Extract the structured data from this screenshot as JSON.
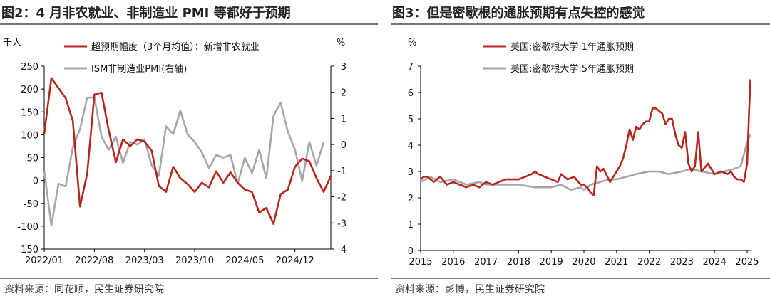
{
  "colors": {
    "red": "#b5271c",
    "gray": "#a6a6a6",
    "axis": "#000000"
  },
  "left": {
    "title": "图2：4 月非农就业、非制造业 PMI 等都好于预期",
    "source": "资料来源：同花顺，民生证券研究院",
    "unit_left": "千人",
    "unit_right": "%",
    "chart_data": {
      "type": "line",
      "xlim": [
        0,
        40
      ],
      "ylim_left": [
        -150,
        250
      ],
      "ylim_right": [
        -4,
        3
      ],
      "yticks_left": [
        "250",
        "200",
        "150",
        "100",
        "50",
        "0",
        "-50",
        "-100",
        "-150"
      ],
      "yticks_right": [
        "3",
        "2",
        "1",
        "0",
        "-1",
        "-2",
        "-3",
        "-4"
      ],
      "xtick_labels": [
        "2022/01",
        "2022/08",
        "2023/03",
        "2023/10",
        "2024/05",
        "2024/12"
      ],
      "xtick_positions": [
        0,
        7,
        14,
        21,
        28,
        35
      ],
      "legend": "top",
      "series": [
        {
          "name": "超预期幅度（3个月均值）：新增非农就业",
          "axis": "left",
          "color": "#b5271c",
          "values": [
            102,
            224,
            180,
            130,
            -57,
            15,
            188,
            192,
            110,
            40,
            90,
            75,
            90,
            85,
            65,
            -12,
            -25,
            30,
            5,
            -8,
            -25,
            -5,
            -15,
            20,
            -5,
            18,
            -5,
            -20,
            -25,
            -70,
            -60,
            -95,
            -30,
            -20,
            30,
            48,
            42,
            5,
            -25,
            10
          ],
          "x": [
            0,
            1,
            3,
            4,
            5,
            6,
            7,
            8,
            9,
            10,
            11,
            12,
            13,
            14,
            15,
            16,
            17,
            18,
            19,
            20,
            21,
            22,
            23,
            24,
            25,
            26,
            27,
            28,
            29,
            30,
            31,
            32,
            33,
            34,
            35,
            36,
            37,
            38,
            39,
            40
          ]
        },
        {
          "name": "ISM非制造业PMI(右轴)",
          "axis": "right",
          "color": "#a6a6a6",
          "values": [
            -1,
            -3.1,
            -1.5,
            -1.6,
            -0.1,
            0.6,
            1.8,
            1.8,
            0.3,
            -0.2,
            0.3,
            -0.7,
            0.1,
            0,
            0.2,
            -0.8,
            -1.2,
            0.7,
            0.4,
            1.3,
            0.4,
            0.1,
            -0.3,
            -0.9,
            -0.4,
            -0.5,
            -0.4,
            -1.5,
            -0.5,
            -1.1,
            -0.2,
            -1.3,
            1.1,
            1.6,
            0.5,
            -0.2,
            -1.4,
            0.1,
            -0.8,
            0.1
          ],
          "x": [
            0,
            1,
            2,
            3,
            4,
            5,
            6,
            7,
            8,
            9,
            10,
            11,
            12,
            13,
            14,
            15,
            16,
            17,
            18,
            19,
            20,
            21,
            22,
            23,
            24,
            25,
            26,
            27,
            28,
            29,
            30,
            31,
            32,
            33,
            34,
            35,
            36,
            37,
            38,
            39
          ]
        }
      ]
    }
  },
  "right": {
    "title": "图3：但是密歇根的通胀预期有点失控的感觉",
    "source": "资料来源：彭博，民生证券研究院",
    "unit_left": "%",
    "chart_data": {
      "type": "line",
      "xlim": [
        2015,
        2025.2
      ],
      "ylim": [
        0,
        7
      ],
      "yticks": [
        "7",
        "6",
        "5",
        "4",
        "3",
        "2",
        "1",
        "0"
      ],
      "xtick_labels": [
        "2015",
        "2016",
        "2017",
        "2018",
        "2019",
        "2020",
        "2021",
        "2022",
        "2023",
        "2024",
        "2025"
      ],
      "legend": "top",
      "series": [
        {
          "name": "美国:密歇根大学:1年通胀预期",
          "color": "#b5271c",
          "x": [
            2015,
            2015.1,
            2015.2,
            2015.4,
            2015.6,
            2015.8,
            2016,
            2016.2,
            2016.4,
            2016.6,
            2016.8,
            2017,
            2017.2,
            2017.4,
            2017.6,
            2017.8,
            2018,
            2018.2,
            2018.4,
            2018.5,
            2018.6,
            2018.8,
            2019,
            2019.2,
            2019.3,
            2019.5,
            2019.7,
            2019.9,
            2020,
            2020.1,
            2020.2,
            2020.3,
            2020.4,
            2020.5,
            2020.6,
            2020.8,
            2021,
            2021.1,
            2021.2,
            2021.3,
            2021.4,
            2021.5,
            2021.6,
            2021.7,
            2021.8,
            2021.9,
            2022,
            2022.1,
            2022.2,
            2022.3,
            2022.4,
            2022.5,
            2022.6,
            2022.7,
            2022.8,
            2022.9,
            2023,
            2023.1,
            2023.2,
            2023.3,
            2023.4,
            2023.5,
            2023.6,
            2023.8,
            2024,
            2024.2,
            2024.4,
            2024.5,
            2024.6,
            2024.7,
            2024.8,
            2024.9,
            2025,
            2025.05,
            2025.1
          ],
          "y": [
            2.7,
            2.8,
            2.8,
            2.6,
            2.8,
            2.5,
            2.6,
            2.5,
            2.4,
            2.5,
            2.4,
            2.6,
            2.5,
            2.6,
            2.7,
            2.7,
            2.7,
            2.8,
            2.9,
            3.0,
            2.9,
            2.8,
            2.7,
            2.6,
            2.9,
            2.7,
            2.8,
            2.5,
            2.5,
            2.4,
            2.2,
            2.1,
            3.2,
            3.0,
            3.1,
            2.6,
            3.0,
            3.2,
            3.5,
            4.0,
            4.6,
            4.2,
            4.7,
            4.6,
            4.8,
            4.9,
            4.9,
            5.4,
            5.4,
            5.3,
            5.2,
            4.8,
            5.0,
            5.0,
            4.4,
            4.0,
            3.9,
            4.5,
            3.3,
            3.0,
            3.2,
            4.5,
            3.0,
            3.3,
            2.9,
            3.0,
            2.9,
            3.0,
            2.8,
            2.7,
            2.7,
            2.6,
            3.3,
            5.0,
            6.5
          ]
        },
        {
          "name": "美国:密歇根大学:5年通胀预期",
          "color": "#a6a6a6",
          "x": [
            2015,
            2015.3,
            2015.6,
            2016,
            2016.4,
            2016.8,
            2017,
            2017.5,
            2018,
            2018.5,
            2019,
            2019.3,
            2019.6,
            2019.9,
            2020,
            2020.2,
            2020.5,
            2020.8,
            2021,
            2021.3,
            2021.6,
            2022,
            2022.3,
            2022.6,
            2023,
            2023.3,
            2023.6,
            2024,
            2024.3,
            2024.6,
            2024.8,
            2025,
            2025.1
          ],
          "y": [
            2.6,
            2.8,
            2.6,
            2.7,
            2.5,
            2.6,
            2.5,
            2.5,
            2.5,
            2.4,
            2.4,
            2.5,
            2.3,
            2.4,
            2.3,
            2.5,
            2.6,
            2.7,
            2.7,
            2.8,
            2.9,
            3.0,
            3.0,
            2.9,
            3.0,
            3.1,
            3.0,
            2.9,
            3.0,
            3.1,
            3.2,
            4.1,
            4.4
          ]
        }
      ]
    }
  }
}
